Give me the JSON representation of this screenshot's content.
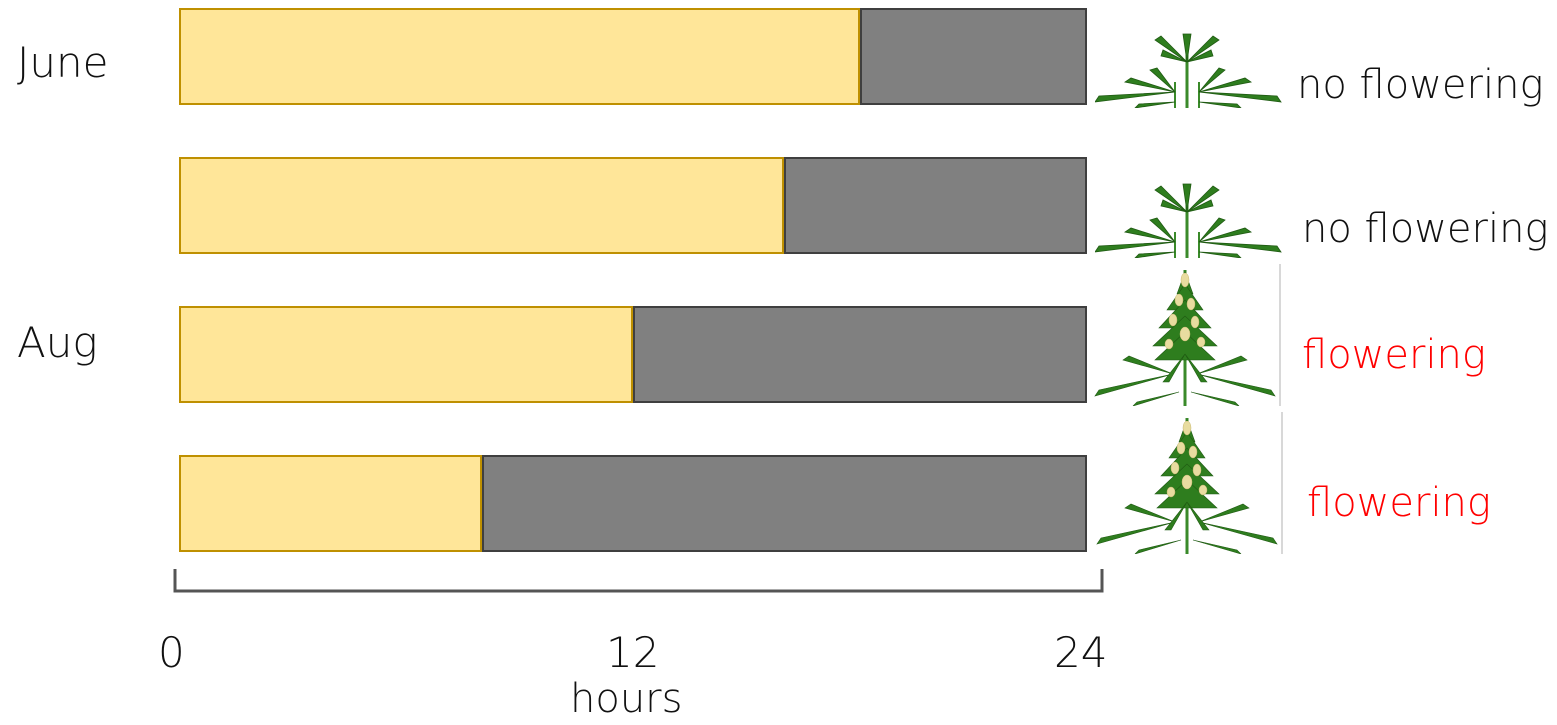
{
  "month_labels": {
    "top": "June",
    "bottom": "Aug"
  },
  "rows": [
    {
      "light_hours": 18,
      "total_hours": 24,
      "outcome": "no flowering",
      "flowering": false
    },
    {
      "light_hours": 16,
      "total_hours": 24,
      "outcome": "no flowering",
      "flowering": false
    },
    {
      "light_hours": 12,
      "total_hours": 24,
      "outcome": "flowering",
      "flowering": true
    },
    {
      "light_hours": 8,
      "total_hours": 24,
      "outcome": "flowering",
      "flowering": true
    }
  ],
  "axis": {
    "ticks": [
      "0",
      "12",
      "24"
    ],
    "label": "hours"
  },
  "colors": {
    "light_fill": "#ffe699",
    "light_border": "#bf9000",
    "dark_fill": "#808080",
    "dark_border": "#3f3f3f",
    "no_flowering_text": "#111111",
    "flowering_text": "#ff0000"
  },
  "icons": {
    "vegetative": "cannabis-leaf-icon",
    "flowering": "cannabis-flowering-plant-icon"
  }
}
